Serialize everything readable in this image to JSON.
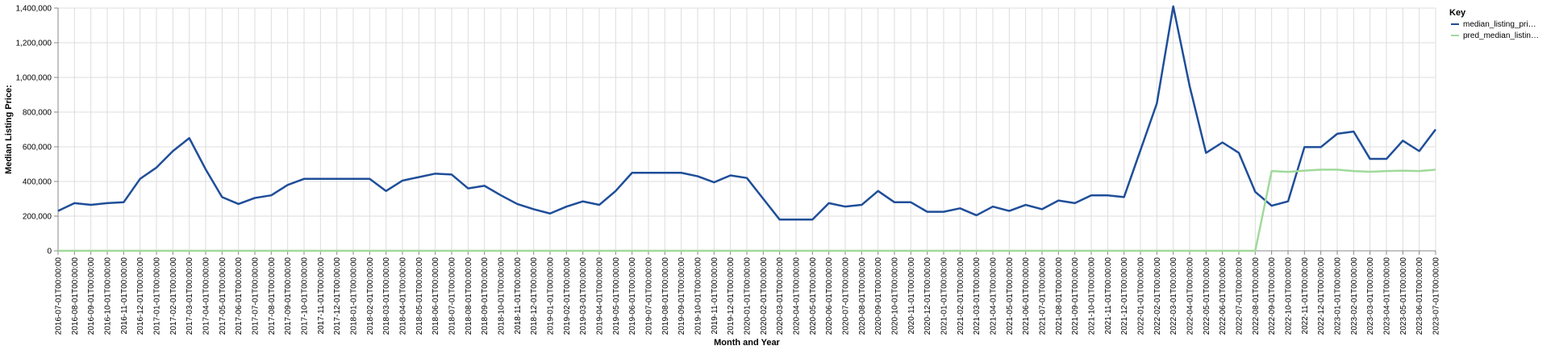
{
  "chart_data": {
    "type": "line",
    "xlabel": "Month and Year",
    "ylabel": "Median Listing Price:",
    "ylim": [
      0,
      1400000
    ],
    "yticks": [
      "0",
      "200,000",
      "400,000",
      "600,000",
      "800,000",
      "1,000,000",
      "1,200,000",
      "1,400,000"
    ],
    "grid": true,
    "legend": {
      "title": "Key",
      "position": "top-right",
      "entries": [
        "median_listing_pri…",
        "pred_median_listin…"
      ]
    },
    "x": [
      "2016-07-01T00:00:00",
      "2016-08-01T00:00:00",
      "2016-09-01T00:00:00",
      "2016-10-01T00:00:00",
      "2016-11-01T00:00:00",
      "2016-12-01T00:00:00",
      "2017-01-01T00:00:00",
      "2017-02-01T00:00:00",
      "2017-03-01T00:00:00",
      "2017-04-01T00:00:00",
      "2017-05-01T00:00:00",
      "2017-06-01T00:00:00",
      "2017-07-01T00:00:00",
      "2017-08-01T00:00:00",
      "2017-09-01T00:00:00",
      "2017-10-01T00:00:00",
      "2017-11-01T00:00:00",
      "2017-12-01T00:00:00",
      "2018-01-01T00:00:00",
      "2018-02-01T00:00:00",
      "2018-03-01T00:00:00",
      "2018-04-01T00:00:00",
      "2018-05-01T00:00:00",
      "2018-06-01T00:00:00",
      "2018-07-01T00:00:00",
      "2018-08-01T00:00:00",
      "2018-09-01T00:00:00",
      "2018-10-01T00:00:00",
      "2018-11-01T00:00:00",
      "2018-12-01T00:00:00",
      "2019-01-01T00:00:00",
      "2019-02-01T00:00:00",
      "2019-03-01T00:00:00",
      "2019-04-01T00:00:00",
      "2019-05-01T00:00:00",
      "2019-06-01T00:00:00",
      "2019-07-01T00:00:00",
      "2019-08-01T00:00:00",
      "2019-09-01T00:00:00",
      "2019-10-01T00:00:00",
      "2019-11-01T00:00:00",
      "2019-12-01T00:00:00",
      "2020-01-01T00:00:00",
      "2020-02-01T00:00:00",
      "2020-03-01T00:00:00",
      "2020-04-01T00:00:00",
      "2020-05-01T00:00:00",
      "2020-06-01T00:00:00",
      "2020-07-01T00:00:00",
      "2020-08-01T00:00:00",
      "2020-09-01T00:00:00",
      "2020-10-01T00:00:00",
      "2020-11-01T00:00:00",
      "2020-12-01T00:00:00",
      "2021-01-01T00:00:00",
      "2021-02-01T00:00:00",
      "2021-03-01T00:00:00",
      "2021-04-01T00:00:00",
      "2021-05-01T00:00:00",
      "2021-06-01T00:00:00",
      "2021-07-01T00:00:00",
      "2021-08-01T00:00:00",
      "2021-09-01T00:00:00",
      "2021-10-01T00:00:00",
      "2021-11-01T00:00:00",
      "2021-12-01T00:00:00",
      "2022-01-01T00:00:00",
      "2022-02-01T00:00:00",
      "2022-03-01T00:00:00",
      "2022-04-01T00:00:00",
      "2022-05-01T00:00:00",
      "2022-06-01T00:00:00",
      "2022-07-01T00:00:00",
      "2022-08-01T00:00:00",
      "2022-09-01T00:00:00",
      "2022-10-01T00:00:00",
      "2022-11-01T00:00:00",
      "2022-12-01T00:00:00",
      "2023-01-01T00:00:00",
      "2023-02-01T00:00:00",
      "2023-03-01T00:00:00",
      "2023-04-01T00:00:00",
      "2023-05-01T00:00:00",
      "2023-06-01T00:00:00",
      "2023-07-01T00:00:00"
    ],
    "series": [
      {
        "name": "median_listing_pri…",
        "color": "#1f4e99",
        "values": [
          230000,
          275000,
          265000,
          275000,
          280000,
          415000,
          480000,
          575000,
          650000,
          470000,
          310000,
          270000,
          305000,
          320000,
          380000,
          415000,
          415000,
          415000,
          415000,
          415000,
          345000,
          405000,
          425000,
          445000,
          440000,
          360000,
          375000,
          320000,
          270000,
          240000,
          215000,
          255000,
          285000,
          265000,
          345000,
          450000,
          450000,
          450000,
          450000,
          430000,
          395000,
          435000,
          420000,
          300000,
          180000,
          180000,
          180000,
          275000,
          255000,
          265000,
          345000,
          280000,
          280000,
          225000,
          225000,
          245000,
          205000,
          255000,
          230000,
          265000,
          240000,
          290000,
          275000,
          320000,
          320000,
          310000,
          580000,
          850000,
          1410000,
          950000,
          565000,
          625000,
          565000,
          340000,
          260000,
          285000,
          598000,
          598000,
          675000,
          688000,
          530000,
          530000,
          635000,
          575000,
          700000
        ]
      },
      {
        "name": "pred_median_listin…",
        "color": "#a1d99b",
        "values": [
          0,
          0,
          0,
          0,
          0,
          0,
          0,
          0,
          0,
          0,
          0,
          0,
          0,
          0,
          0,
          0,
          0,
          0,
          0,
          0,
          0,
          0,
          0,
          0,
          0,
          0,
          0,
          0,
          0,
          0,
          0,
          0,
          0,
          0,
          0,
          0,
          0,
          0,
          0,
          0,
          0,
          0,
          0,
          0,
          0,
          0,
          0,
          0,
          0,
          0,
          0,
          0,
          0,
          0,
          0,
          0,
          0,
          0,
          0,
          0,
          0,
          0,
          0,
          0,
          0,
          0,
          0,
          0,
          0,
          0,
          0,
          0,
          0,
          0,
          460000,
          455000,
          462000,
          468000,
          468000,
          460000,
          456000,
          460000,
          462000,
          460000,
          468000
        ]
      }
    ]
  }
}
